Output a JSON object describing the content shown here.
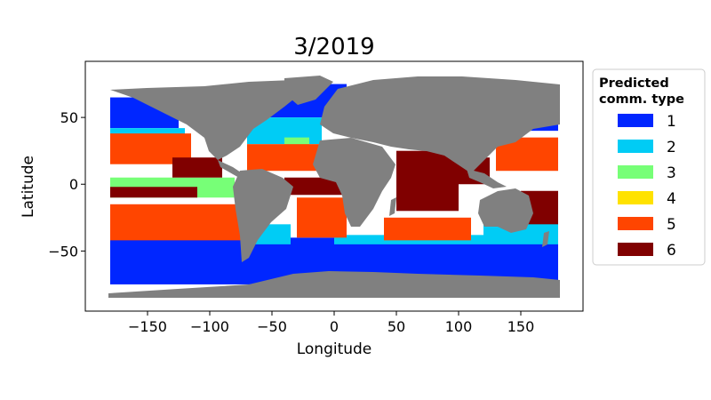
{
  "chart_data": {
    "type": "scatter",
    "title": "3/2019",
    "xlabel": "Longitude",
    "ylabel": "Latitude",
    "xlim": [
      -200,
      200
    ],
    "ylim": [
      -95,
      92
    ],
    "xticks": [
      -150,
      -100,
      -50,
      0,
      50,
      100,
      150
    ],
    "xtick_labels": [
      "−150",
      "−100",
      "−50",
      "0",
      "50",
      "100",
      "150"
    ],
    "yticks": [
      50,
      0,
      -50
    ],
    "ytick_labels": [
      "50",
      "0",
      "−50"
    ],
    "grid": false,
    "legend_position": "outside-right",
    "legend": {
      "title": "Predicted\ncomm. type",
      "entries": [
        {
          "label": "1",
          "color": "#0026ff"
        },
        {
          "label": "2",
          "color": "#00ccf5"
        },
        {
          "label": "3",
          "color": "#77ff77"
        },
        {
          "label": "4",
          "color": "#ffe200"
        },
        {
          "label": "5",
          "color": "#ff4500"
        },
        {
          "label": "6",
          "color": "#800000"
        }
      ]
    },
    "land_color": "#808080",
    "regions": [
      {
        "type": "1",
        "lon": [
          -180,
          180
        ],
        "lat": [
          -75,
          -40
        ]
      },
      {
        "type": "1",
        "lon": [
          -180,
          -125
        ],
        "lat": [
          42,
          65
        ]
      },
      {
        "type": "1",
        "lon": [
          -75,
          10
        ],
        "lat": [
          50,
          75
        ]
      },
      {
        "type": "1",
        "lon": [
          130,
          180
        ],
        "lat": [
          40,
          65
        ]
      },
      {
        "type": "2",
        "lon": [
          -180,
          -120
        ],
        "lat": [
          30,
          42
        ]
      },
      {
        "type": "2",
        "lon": [
          -70,
          -10
        ],
        "lat": [
          30,
          50
        ]
      },
      {
        "type": "2",
        "lon": [
          -65,
          -35
        ],
        "lat": [
          -45,
          -30
        ]
      },
      {
        "type": "2",
        "lon": [
          0,
          120
        ],
        "lat": [
          -45,
          -38
        ]
      },
      {
        "type": "2",
        "lon": [
          120,
          180
        ],
        "lat": [
          -45,
          -28
        ]
      },
      {
        "type": "3",
        "lon": [
          -180,
          -80
        ],
        "lat": [
          -10,
          5
        ]
      },
      {
        "type": "3",
        "lon": [
          -40,
          -20
        ],
        "lat": [
          20,
          35
        ]
      },
      {
        "type": "5",
        "lon": [
          -180,
          -115
        ],
        "lat": [
          15,
          38
        ]
      },
      {
        "type": "5",
        "lon": [
          -180,
          -70
        ],
        "lat": [
          -42,
          -15
        ]
      },
      {
        "type": "5",
        "lon": [
          -70,
          -10
        ],
        "lat": [
          10,
          30
        ]
      },
      {
        "type": "5",
        "lon": [
          -30,
          10
        ],
        "lat": [
          -40,
          -10
        ]
      },
      {
        "type": "5",
        "lon": [
          40,
          110
        ],
        "lat": [
          -42,
          -25
        ]
      },
      {
        "type": "5",
        "lon": [
          130,
          180
        ],
        "lat": [
          10,
          35
        ]
      },
      {
        "type": "6",
        "lon": [
          -180,
          -110
        ],
        "lat": [
          -10,
          -2
        ]
      },
      {
        "type": "6",
        "lon": [
          -130,
          -90
        ],
        "lat": [
          5,
          20
        ]
      },
      {
        "type": "6",
        "lon": [
          -40,
          10
        ],
        "lat": [
          -8,
          5
        ]
      },
      {
        "type": "6",
        "lon": [
          50,
          100
        ],
        "lat": [
          -20,
          25
        ]
      },
      {
        "type": "6",
        "lon": [
          100,
          125
        ],
        "lat": [
          0,
          20
        ]
      },
      {
        "type": "6",
        "lon": [
          150,
          180
        ],
        "lat": [
          -30,
          -5
        ]
      }
    ]
  }
}
